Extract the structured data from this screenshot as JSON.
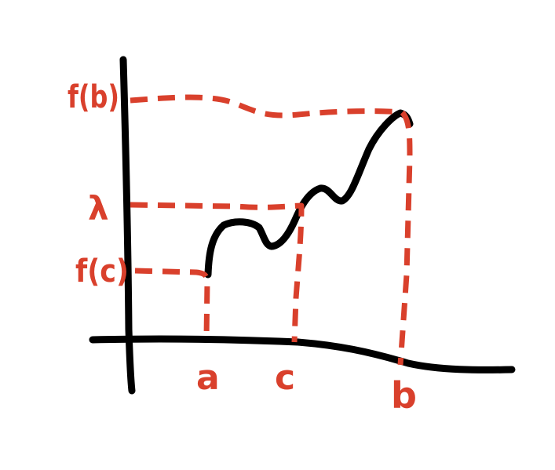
{
  "colors": {
    "ink": "#000000",
    "accent": "#d9402c",
    "background": "#ffffff"
  },
  "labels": {
    "f_b": "f(b)",
    "lambda": "λ",
    "f_c": "f(c)",
    "a": "a",
    "c": "c",
    "b": "b"
  }
}
